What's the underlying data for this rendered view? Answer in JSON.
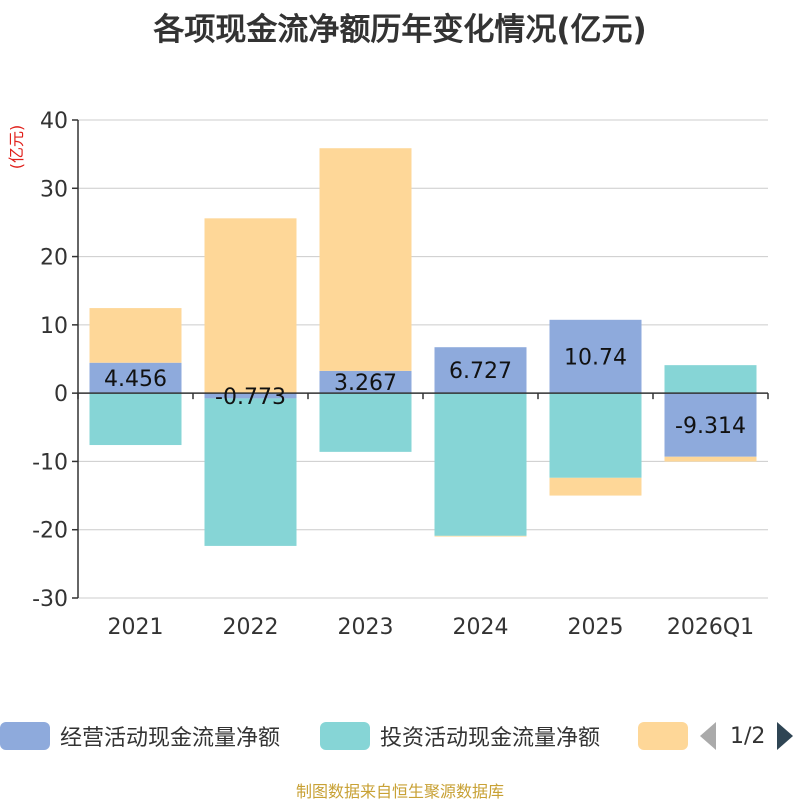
{
  "title": "各项现金流净额历年变化情况(亿元)",
  "source": "制图数据来自恒生聚源数据库",
  "pager": {
    "text": "1/2"
  },
  "chart_data": {
    "type": "bar",
    "stacked": true,
    "y_unit_label": "(亿元)",
    "ylim": [
      -30,
      40
    ],
    "yticks": [
      40,
      30,
      20,
      10,
      0,
      -10,
      -20,
      -30
    ],
    "categories": [
      "2021",
      "2022",
      "2023",
      "2024",
      "2025",
      "2026Q1"
    ],
    "series": [
      {
        "name": "经营活动现金流量净额",
        "color": "#8eaadc",
        "values": [
          4.456,
          -0.773,
          3.267,
          6.727,
          10.74,
          -9.314
        ],
        "show_labels": true
      },
      {
        "name": "投资活动现金流量净额",
        "color": "#86d5d6",
        "values": [
          -7.6,
          -21.6,
          -8.6,
          -20.9,
          -12.4,
          4.1
        ],
        "show_labels": false
      },
      {
        "name": "",
        "color": "#fed798",
        "values": [
          8.0,
          25.6,
          32.6,
          -0.1,
          -2.6,
          -0.7
        ],
        "show_labels": false
      }
    ],
    "data_labels": [
      "4.456",
      "-0.773",
      "3.267",
      "6.727",
      "10.74",
      "-9.314"
    ]
  }
}
